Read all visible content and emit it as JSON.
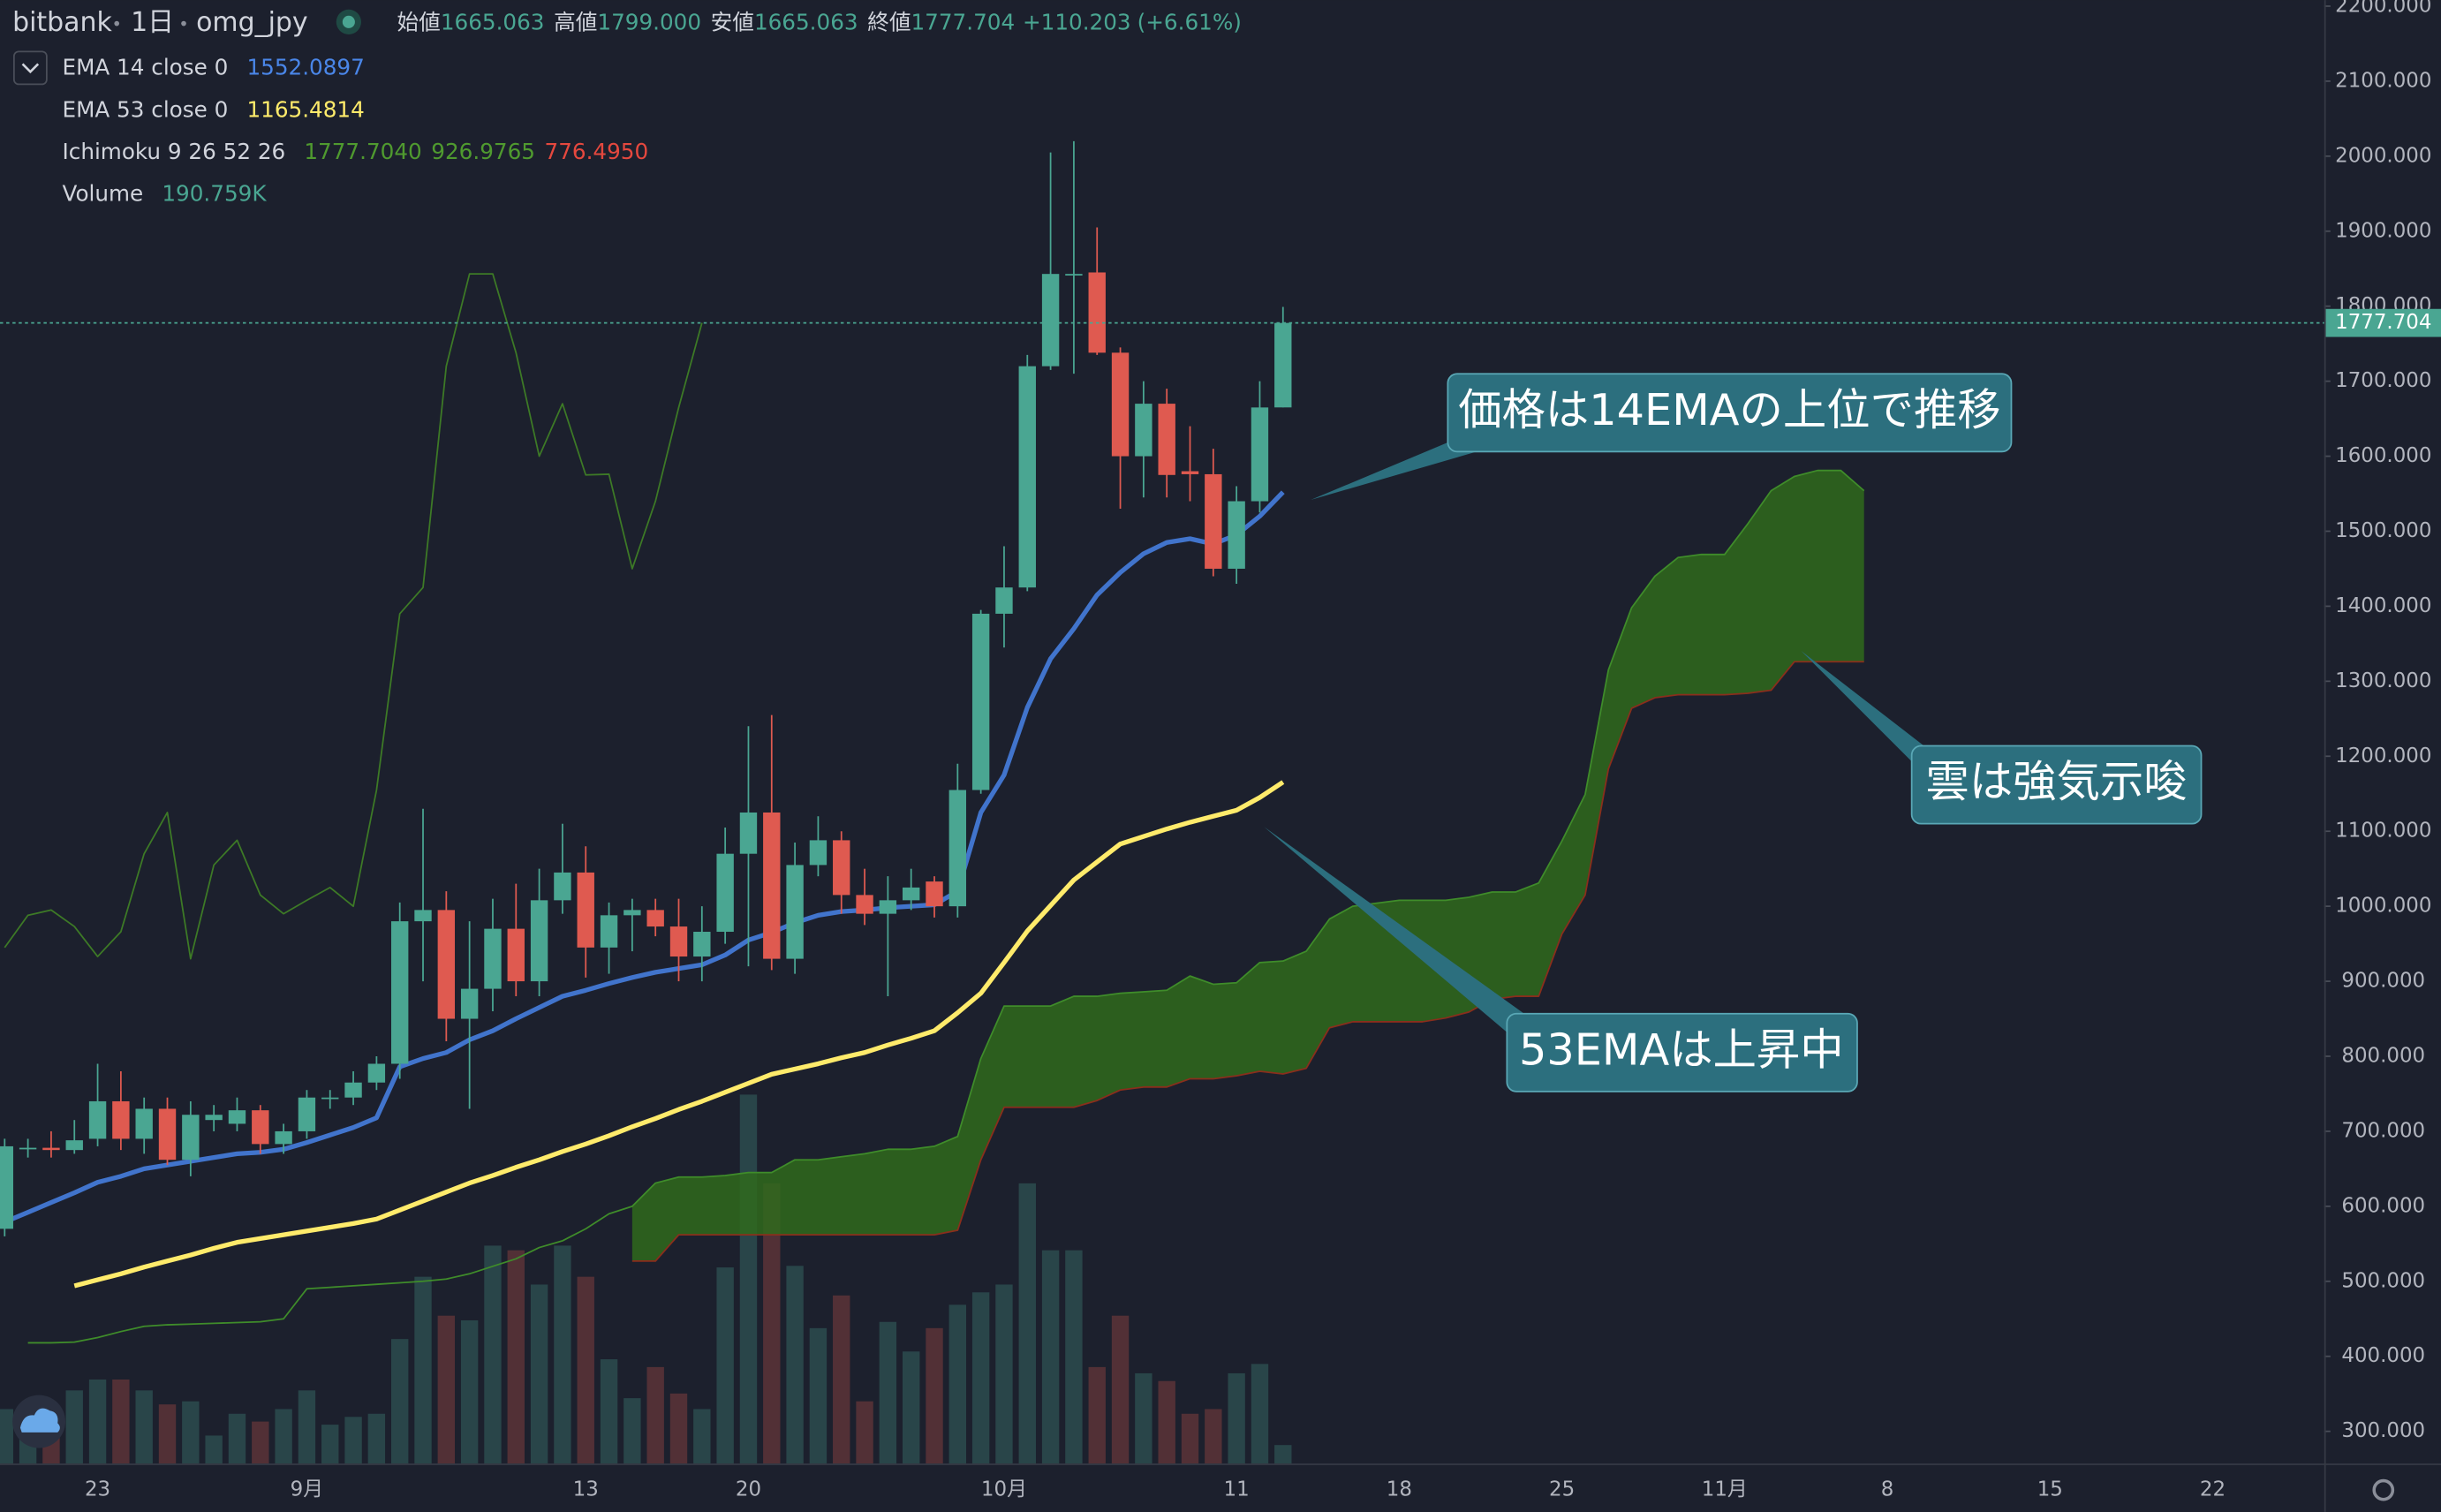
{
  "header": {
    "exchange": "bitbank",
    "interval": "1日",
    "symbol": "omg_jpy",
    "ohlc": [
      {
        "label": "始値",
        "value": "1665.063"
      },
      {
        "label": "高値",
        "value": "1799.000"
      },
      {
        "label": "安値",
        "value": "1665.063"
      },
      {
        "label": "終値",
        "value": "1777.704"
      }
    ],
    "change": "+110.203",
    "change_pct": "(+6.61%)"
  },
  "annotations": [
    "価格は14EMAの上位で推移",
    "雲は強気示唆",
    "53EMAは上昇中"
  ],
  "chart_data": {
    "type": "candlestick",
    "categories": [
      null,
      null,
      null,
      null,
      "23",
      null,
      null,
      null,
      null,
      null,
      null,
      null,
      null,
      "9月",
      null,
      null,
      null,
      null,
      null,
      null,
      null,
      null,
      null,
      null,
      null,
      "13",
      null,
      null,
      null,
      null,
      null,
      null,
      "20",
      null,
      null,
      null,
      null,
      null,
      null,
      null,
      null,
      null,
      null,
      "10月",
      null,
      null,
      null,
      null,
      null,
      null,
      null,
      null,
      null,
      "11",
      null,
      null,
      null,
      null,
      null,
      null,
      "18",
      null,
      null,
      null,
      null,
      null,
      null,
      "25",
      null,
      null,
      null,
      null,
      null,
      null,
      "11月",
      null,
      null,
      null,
      null,
      null,
      null,
      "8",
      null,
      null,
      null,
      null,
      null,
      null,
      "15",
      null,
      null,
      null,
      null,
      null,
      null,
      "22"
    ],
    "up_color": "#4aa692",
    "down_color": "#df5a50",
    "open": [
      570,
      676,
      678,
      675,
      690,
      740,
      690,
      730,
      662,
      715,
      710,
      728,
      683,
      700,
      745,
      745,
      765,
      790,
      980,
      995,
      850,
      890,
      970,
      900,
      1008,
      1045,
      945,
      988,
      995,
      973,
      933,
      966,
      1070,
      1125,
      930,
      1055,
      1088,
      1015,
      990,
      1008,
      1033,
      1000,
      1155,
      1390,
      1425,
      1720,
      1843,
      1845,
      1738,
      1600,
      1670,
      1580,
      1576,
      1450,
      1540,
      1665.063,
      null,
      null,
      null,
      null,
      null,
      null,
      null,
      null,
      null,
      null,
      null,
      null,
      null,
      null,
      null,
      null,
      null,
      null,
      null,
      null,
      null,
      null,
      null,
      null,
      null,
      null,
      null,
      null,
      null,
      null,
      null,
      null,
      null,
      null,
      null,
      null,
      null,
      null,
      null,
      null
    ],
    "high": [
      690,
      690,
      700,
      715,
      790,
      780,
      745,
      745,
      740,
      735,
      745,
      735,
      710,
      755,
      755,
      780,
      800,
      1005,
      1130,
      1020,
      980,
      1010,
      1030,
      1050,
      1110,
      1080,
      1005,
      1010,
      1010,
      1010,
      1000,
      1105,
      1240,
      1255,
      1085,
      1120,
      1100,
      1050,
      1040,
      1050,
      1040,
      1190,
      1395,
      1480,
      1735,
      2005,
      2020,
      1905,
      1745,
      1700,
      1690,
      1640,
      1610,
      1560,
      1700,
      1799,
      null,
      null,
      null,
      null,
      null,
      null,
      null,
      null,
      null,
      null,
      null,
      null,
      null,
      null,
      null,
      null,
      null,
      null,
      null,
      null,
      null,
      null,
      null,
      null,
      null,
      null,
      null,
      null,
      null,
      null,
      null,
      null,
      null,
      null,
      null,
      null,
      null,
      null,
      null,
      null
    ],
    "low": [
      560,
      665,
      665,
      670,
      680,
      675,
      670,
      655,
      640,
      700,
      700,
      670,
      670,
      690,
      730,
      735,
      755,
      770,
      900,
      820,
      730,
      860,
      880,
      880,
      990,
      905,
      910,
      940,
      960,
      900,
      900,
      950,
      920,
      915,
      910,
      1040,
      990,
      975,
      880,
      995,
      985,
      985,
      1150,
      1345,
      1420,
      1715,
      1710,
      1735,
      1530,
      1545,
      1545,
      1540,
      1440,
      1430,
      1525,
      1665.063,
      null,
      null,
      null,
      null,
      null,
      null,
      null,
      null,
      null,
      null,
      null,
      null,
      null,
      null,
      null,
      null,
      null,
      null,
      null,
      null,
      null,
      null,
      null,
      null,
      null,
      null,
      null,
      null,
      null,
      null,
      null,
      null,
      null,
      null,
      null,
      null,
      null,
      null,
      null,
      null
    ],
    "close": [
      680,
      678,
      675,
      688,
      740,
      690,
      730,
      662,
      722,
      722,
      728,
      683,
      700,
      745,
      745,
      765,
      790,
      980,
      995,
      850,
      890,
      970,
      900,
      1008,
      1045,
      945,
      988,
      995,
      973,
      933,
      966,
      1070,
      1125,
      930,
      1055,
      1088,
      1015,
      990,
      1008,
      1025,
      1000,
      1155,
      1390,
      1425,
      1720,
      1843,
      1843,
      1738,
      1600,
      1670,
      1575,
      1576,
      1450,
      1540,
      1665,
      1777.704,
      null,
      null,
      null,
      null,
      null,
      null,
      null,
      null,
      null,
      null,
      null,
      null,
      null,
      null,
      null,
      null,
      null,
      null,
      null,
      null,
      null,
      null,
      null,
      null,
      null,
      null,
      null,
      null,
      null,
      null,
      null,
      null,
      null,
      null,
      null,
      null,
      null,
      null,
      null,
      null
    ],
    "series": [
      {
        "name": "EMA 14 close 0",
        "color": "#4174cc",
        "legend_value": "1552.0897",
        "values": [
          579,
          592,
          605,
          618,
          632,
          640,
          650,
          655,
          660,
          665,
          670,
          672,
          676,
          685,
          695,
          705,
          718,
          786,
          797,
          805,
          822,
          834,
          850,
          865,
          880,
          888,
          897,
          905,
          912,
          917,
          922,
          935,
          955,
          965,
          978,
          988,
          993,
          995,
          998,
          1000,
          1002,
          1020,
          1125,
          1175,
          1265,
          1330,
          1370,
          1415,
          1445,
          1470,
          1485,
          1490,
          1483,
          1495,
          1520,
          1552.0897,
          null,
          null,
          null,
          null,
          null,
          null,
          null,
          null,
          null,
          null,
          null,
          null,
          null,
          null,
          null,
          null,
          null,
          null,
          null,
          null,
          null,
          null,
          null,
          null,
          null,
          null,
          null,
          null,
          null,
          null,
          null,
          null,
          null,
          null,
          null,
          null,
          null,
          null,
          null,
          null
        ]
      },
      {
        "name": "EMA 53 close 0",
        "color": "#ffeb6b",
        "legend_value": "1165.4814",
        "values": [
          null,
          null,
          null,
          494,
          502,
          510,
          519,
          527,
          535,
          544,
          552,
          557,
          562,
          567,
          572,
          577,
          583,
          595,
          607,
          619,
          631,
          641,
          652,
          662,
          673,
          683,
          694,
          706,
          717,
          729,
          740,
          752,
          764,
          776,
          783,
          790,
          798,
          805,
          815,
          824,
          834,
          858,
          884,
          925,
          967,
          1001,
          1035,
          1059,
          1083,
          1093,
          1103,
          1112,
          1120,
          1128,
          1145,
          1165.4814,
          null,
          null,
          null,
          null,
          null,
          null,
          null,
          null,
          null,
          null,
          null,
          null,
          null,
          null,
          null,
          null,
          null,
          null,
          null,
          null,
          null,
          null,
          null,
          null,
          null,
          null,
          null,
          null,
          null,
          null,
          null,
          null,
          null,
          null,
          null,
          null,
          null,
          null,
          null,
          null
        ]
      }
    ],
    "ichimoku": {
      "name": "Ichimoku 9 26 52 26",
      "legend_values": [
        "1777.7040",
        "926.9765",
        "776.4950"
      ],
      "cloud_color": "#2f6a1c",
      "lagging": {
        "color": "#3d7a26",
        "values": [
          945,
          988,
          995,
          973,
          933,
          966,
          1070,
          1125,
          930,
          1055,
          1088,
          1015,
          990,
          1008,
          1025,
          1000,
          1155,
          1390,
          1425,
          1720,
          1843,
          1843,
          1738,
          1600,
          1670,
          1575,
          1576,
          1450,
          1540,
          1665,
          1777.704,
          null,
          null,
          null,
          null,
          null,
          null,
          null,
          null,
          null,
          null,
          null,
          null,
          null,
          null,
          null,
          null,
          null,
          null,
          null,
          null,
          null,
          null,
          null,
          null,
          null,
          null,
          null,
          null,
          null,
          null,
          null,
          null,
          null,
          null,
          null,
          null,
          null,
          null,
          null,
          null,
          null,
          null,
          null,
          null,
          null,
          null,
          null,
          null,
          null,
          null,
          null,
          null,
          null,
          null,
          null,
          null,
          null,
          null,
          null,
          null,
          null,
          null,
          null,
          null,
          null
        ]
      },
      "span_a": {
        "color": "#3f8c2a",
        "values": [
          null,
          418,
          418,
          419,
          425,
          433,
          440,
          442,
          443,
          444,
          445,
          446,
          450,
          490,
          492,
          494,
          496,
          498,
          500,
          503,
          510,
          520,
          530,
          545,
          554,
          570,
          590,
          600,
          631,
          639,
          639,
          641,
          645,
          645,
          662,
          662,
          666,
          670,
          676,
          676,
          680,
          693,
          797,
          867,
          867,
          867,
          880,
          880,
          884,
          886,
          888,
          907,
          896,
          898,
          925,
          926.9765,
          940,
          983,
          1000,
          1004,
          1008,
          1008,
          1008,
          1012,
          1019,
          1019,
          1031,
          1087,
          1149,
          1315,
          1398,
          1440,
          1465,
          1469,
          1469,
          1510,
          1554,
          1573,
          1581,
          1581,
          1554,
          null,
          null,
          null,
          null,
          null,
          null,
          null,
          null,
          null,
          null,
          null,
          null,
          null,
          null,
          null
        ]
      },
      "span_b": {
        "color": "#8a2e1c",
        "values": [
          null,
          null,
          null,
          null,
          null,
          null,
          null,
          null,
          null,
          null,
          null,
          null,
          null,
          null,
          null,
          null,
          null,
          null,
          null,
          null,
          null,
          null,
          null,
          null,
          null,
          null,
          null,
          527,
          527,
          562,
          562,
          562,
          562,
          562,
          562,
          562,
          562,
          562,
          562,
          562,
          562,
          568,
          662,
          732,
          732,
          732,
          732,
          741,
          755,
          759,
          759,
          770,
          770,
          774,
          780,
          776.495,
          784,
          838,
          846,
          846,
          846,
          846,
          851,
          859,
          876,
          880,
          880,
          963,
          1015,
          1183,
          1264,
          1278,
          1282,
          1282,
          1282,
          1284,
          1288,
          1326,
          1326,
          1326,
          1326,
          null,
          null,
          null,
          null,
          null,
          null,
          null,
          null,
          null,
          null,
          null,
          null,
          null,
          null,
          null
        ]
      }
    },
    "volume": {
      "name": "Volume",
      "legend_value": "190.759K",
      "values": [
        560,
        560,
        560,
        752,
        864,
        864,
        752,
        608,
        640,
        288,
        512,
        432,
        560,
        752,
        400,
        480,
        512,
        1280,
        1920,
        1520,
        1472,
        2240,
        2192,
        1840,
        2240,
        1920,
        1072,
        672,
        992,
        720,
        560,
        2016,
        3792,
        2880,
        2032,
        1392,
        1728,
        640,
        1456,
        1152,
        1392,
        1632,
        1760,
        1840,
        2880,
        2192,
        2192,
        992,
        1520,
        928,
        848,
        512,
        560,
        928,
        1024,
        190.759,
        null,
        null,
        null,
        null,
        null,
        null,
        null,
        null,
        null,
        null,
        null,
        null,
        null,
        null,
        null,
        null,
        null,
        null,
        null,
        null,
        null,
        null,
        null,
        null,
        null,
        null,
        null,
        null,
        null,
        null,
        null,
        null,
        null,
        null,
        null,
        null,
        null,
        null,
        null,
        null
      ]
    },
    "ylim": [
      257,
      2208
    ],
    "yticks": [
      {
        "value": 300,
        "label": "300.000"
      },
      {
        "value": 400,
        "label": "400.000"
      },
      {
        "value": 500,
        "label": "500.000"
      },
      {
        "value": 600,
        "label": "600.000"
      },
      {
        "value": 700,
        "label": "700.000"
      },
      {
        "value": 800,
        "label": "800.000"
      },
      {
        "value": 900,
        "label": "900.000"
      },
      {
        "value": 1000,
        "label": "1000.000"
      },
      {
        "value": 1100,
        "label": "1100.000"
      },
      {
        "value": 1200,
        "label": "1200.000"
      },
      {
        "value": 1300,
        "label": "1300.000"
      },
      {
        "value": 1400,
        "label": "1400.000"
      },
      {
        "value": 1500,
        "label": "1500.000"
      },
      {
        "value": 1600,
        "label": "1600.000"
      },
      {
        "value": 1700,
        "label": "1700.000"
      },
      {
        "value": 1800,
        "label": "1800.000"
      },
      {
        "value": 1900,
        "label": "1900.000"
      },
      {
        "value": 2000,
        "label": "2000.000"
      },
      {
        "value": 2100,
        "label": "2100.000"
      },
      {
        "value": 2200,
        "label": "2200.000"
      }
    ],
    "grid": false
  }
}
